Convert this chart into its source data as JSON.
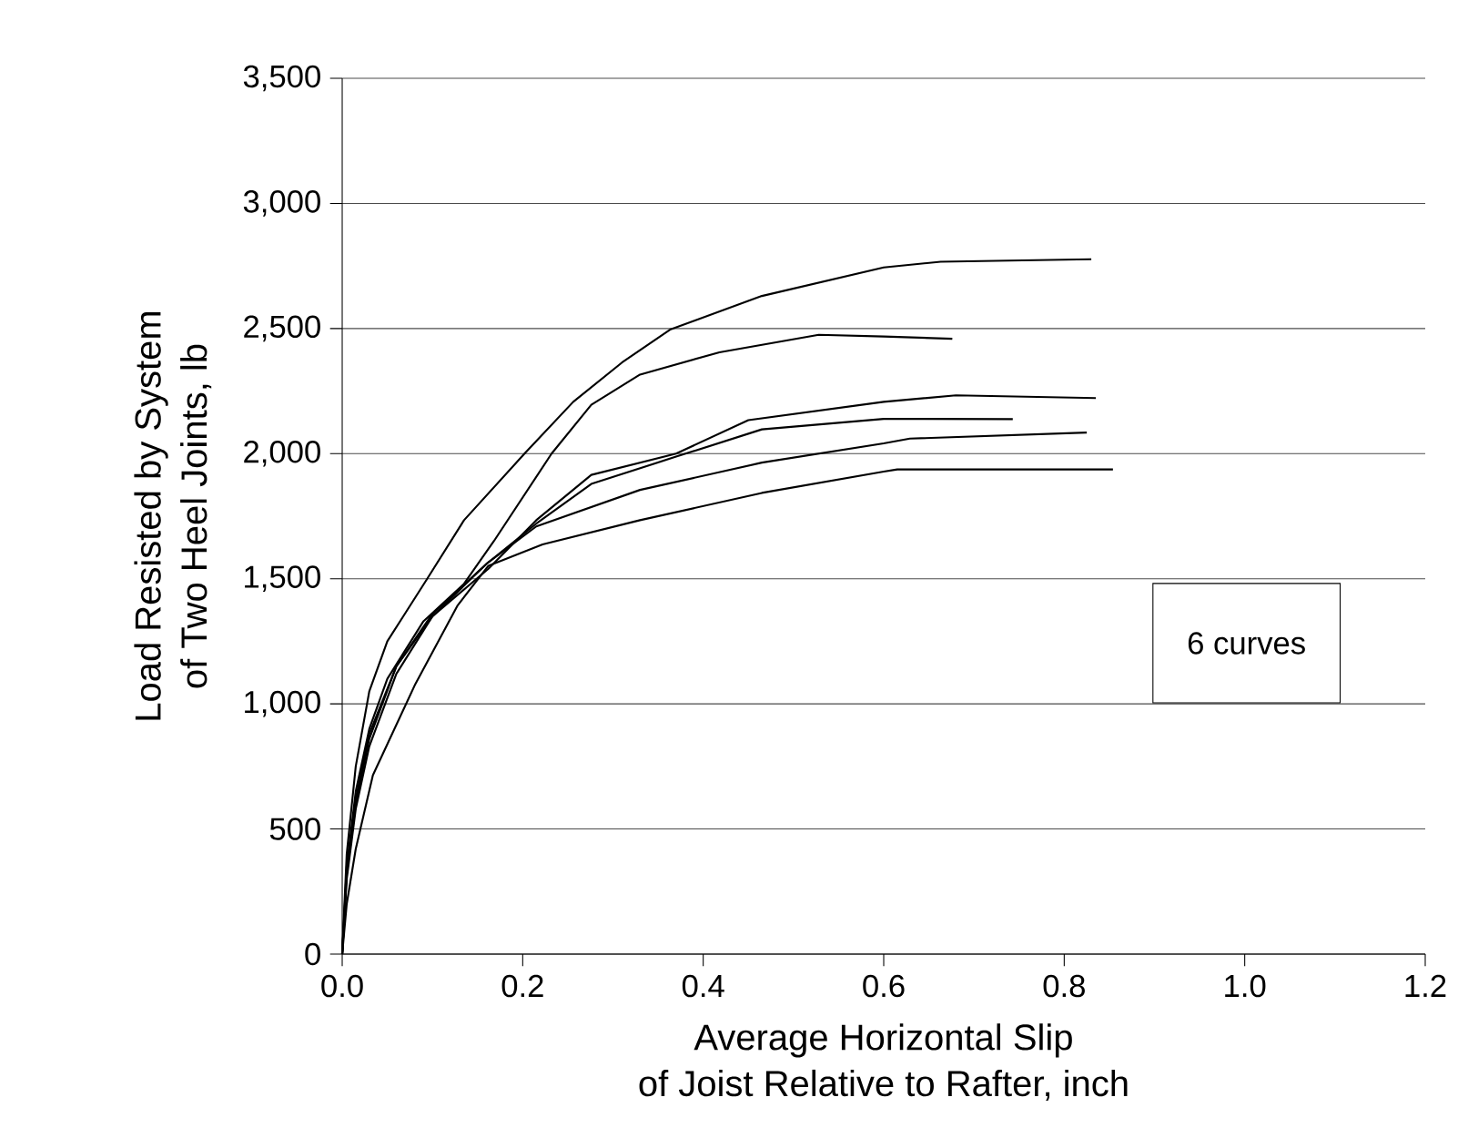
{
  "chart_data": {
    "type": "line",
    "xlabel": "Average Horizontal Slip\nof Joist Relative to Rafter, inch",
    "ylabel": "Load Resisted by System\nof Two Heel Joints, lb",
    "xlim": [
      0,
      1.2
    ],
    "ylim": [
      0,
      3500
    ],
    "xticks": [
      {
        "value": 0,
        "label": "0.0"
      },
      {
        "value": 0.2,
        "label": "0.2"
      },
      {
        "value": 0.4,
        "label": "0.4"
      },
      {
        "value": 0.6,
        "label": "0.6"
      },
      {
        "value": 0.8,
        "label": "0.8"
      },
      {
        "value": 1.0,
        "label": "1.0"
      },
      {
        "value": 1.2,
        "label": "1.2"
      }
    ],
    "yticks": [
      0,
      {
        "value": 500,
        "label": "500"
      },
      {
        "value": 1000,
        "label": "1,000"
      },
      {
        "value": 1500,
        "label": "1,500"
      },
      {
        "value": 2000,
        "label": "2,000"
      },
      {
        "value": 2500,
        "label": "2,500"
      },
      {
        "value": 3000,
        "label": "3,000"
      },
      {
        "value": 3500,
        "label": "3,500"
      }
    ],
    "grid": "y",
    "annotations": [
      "6 curves"
    ],
    "series": [
      {
        "color": "#000000",
        "x": [
          0,
          0.005,
          0.015,
          0.03,
          0.05,
          0.067,
          0.094,
          0.135,
          0.202,
          0.256,
          0.31,
          0.364,
          0.465,
          0.6,
          0.663,
          0.83
        ],
        "values": [
          0,
          400,
          750,
          1050,
          1250,
          1346,
          1499,
          1734,
          2000,
          2207,
          2364,
          2497,
          2630,
          2744,
          2767,
          2777
        ]
      },
      {
        "color": "#000000",
        "x": [
          0,
          0.005,
          0.015,
          0.03,
          0.05,
          0.09,
          0.135,
          0.168,
          0.232,
          0.276,
          0.33,
          0.418,
          0.528,
          0.6,
          0.676
        ],
        "values": [
          0,
          350,
          650,
          900,
          1100,
          1330,
          1480,
          1650,
          2000,
          2195,
          2316,
          2405,
          2475,
          2468,
          2459
        ]
      },
      {
        "color": "#000000",
        "x": [
          0,
          0.005,
          0.015,
          0.03,
          0.06,
          0.1,
          0.162,
          0.215,
          0.276,
          0.37,
          0.45,
          0.6,
          0.68,
          0.835
        ],
        "values": [
          0,
          330,
          620,
          880,
          1150,
          1350,
          1540,
          1734,
          1915,
          2000,
          2134,
          2207,
          2233,
          2222
        ]
      },
      {
        "color": "#000000",
        "x": [
          0,
          0.005,
          0.015,
          0.03,
          0.06,
          0.1,
          0.16,
          0.215,
          0.276,
          0.37,
          0.465,
          0.6,
          0.743
        ],
        "values": [
          0,
          320,
          600,
          860,
          1150,
          1360,
          1560,
          1720,
          1879,
          1988,
          2097,
          2139,
          2138
        ]
      },
      {
        "color": "#000000",
        "x": [
          0,
          0.005,
          0.015,
          0.03,
          0.06,
          0.1,
          0.16,
          0.215,
          0.33,
          0.465,
          0.6,
          0.629,
          0.825
        ],
        "values": [
          0,
          300,
          580,
          830,
          1120,
          1350,
          1560,
          1709,
          1855,
          1964,
          2041,
          2060,
          2084
        ]
      },
      {
        "color": "#000000",
        "x": [
          0,
          0.005,
          0.015,
          0.034,
          0.081,
          0.128,
          0.162,
          0.222,
          0.33,
          0.465,
          0.6,
          0.615,
          0.854
        ],
        "values": [
          0,
          200,
          420,
          715,
          1079,
          1394,
          1552,
          1637,
          1734,
          1843,
          1928,
          1937,
          1937
        ]
      }
    ]
  }
}
